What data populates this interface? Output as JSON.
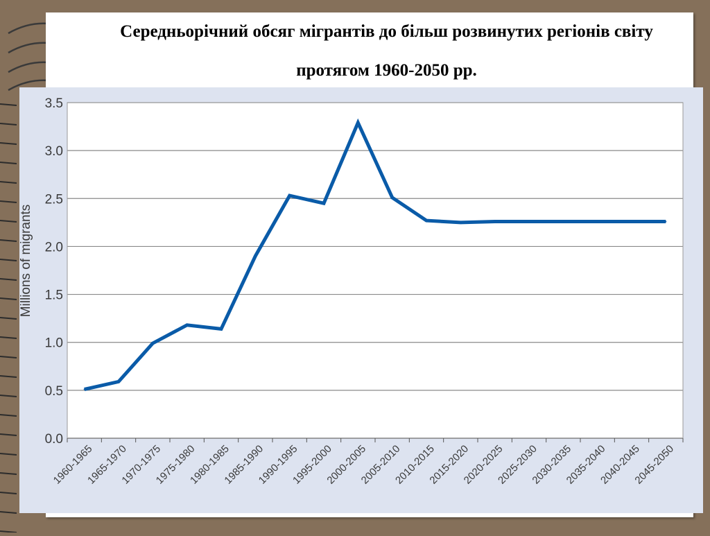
{
  "slide": {
    "title_line1": "Середньорічний обсяг мігрантів до більш розвинутих регіонів світу",
    "title_line2": "протягом 1960-2050 рр.",
    "background_color": "#85705a",
    "panel_color": "#dde3f0",
    "line_color": "#0a5ba8"
  },
  "chart_data": {
    "type": "line",
    "title": "Середньорічний обсяг мігрантів до більш розвинутих регіонів світу протягом 1960-2050 рр.",
    "xlabel": "",
    "ylabel": "Millions of migrants",
    "categories": [
      "1960-1965",
      "1965-1970",
      "1970-1975",
      "1975-1980",
      "1980-1985",
      "1985-1990",
      "1990-1995",
      "1995-2000",
      "2000-2005",
      "2005-2010",
      "2010-2015",
      "2015-2020",
      "2020-2025",
      "2025-2030",
      "2030-2035",
      "2035-2040",
      "2040-2045",
      "2045-2050"
    ],
    "values": [
      0.51,
      0.59,
      0.99,
      1.18,
      1.14,
      1.9,
      2.53,
      2.45,
      3.29,
      2.51,
      2.27,
      2.25,
      2.26,
      2.26,
      2.26,
      2.26,
      2.26,
      2.26
    ],
    "ylim": [
      0,
      3.5
    ],
    "yticks": [
      "0.0",
      "0.5",
      "1.0",
      "1.5",
      "2.0",
      "2.5",
      "3.0",
      "3.5"
    ],
    "grid": true,
    "legend": "none"
  }
}
